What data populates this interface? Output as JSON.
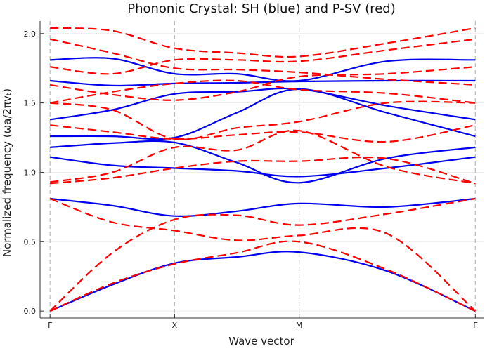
{
  "chart_data": {
    "type": "line",
    "title": "Phononic Crystal: SH (blue) and P-SV (red)",
    "xlabel": "Wave vector",
    "ylabel": "Normalized frequency (ωa/2πvₜ)",
    "xticks": [
      {
        "label": "Γ",
        "k": 0
      },
      {
        "label": "X",
        "k": 1
      },
      {
        "label": "M",
        "k": 2
      },
      {
        "label": "Γ",
        "k": 3.414
      }
    ],
    "yticks": [
      "0.0",
      "0.5",
      "1.0",
      "1.5",
      "2.0"
    ],
    "ylim": [
      -0.05,
      2.09
    ],
    "xlim": [
      -0.08,
      3.48
    ],
    "grid": true,
    "k": [
      0,
      0.5,
      1,
      1.5,
      2,
      2.7,
      3.414
    ],
    "series": [
      {
        "mode": "SH",
        "color": "#0000ee",
        "style": "solid",
        "bands": [
          [
            0,
            0.19,
            0.345,
            0.39,
            0.425,
            0.29,
            0
          ],
          [
            0.81,
            0.76,
            0.685,
            0.72,
            0.775,
            0.75,
            0.81
          ],
          [
            1.11,
            1.05,
            1.03,
            1.01,
            0.97,
            1.03,
            1.11
          ],
          [
            1.18,
            1.21,
            1.215,
            1.07,
            0.925,
            1.1,
            1.18
          ],
          [
            1.26,
            1.26,
            1.25,
            1.43,
            1.6,
            1.43,
            1.26
          ],
          [
            1.38,
            1.45,
            1.565,
            1.58,
            1.6,
            1.48,
            1.38
          ],
          [
            1.66,
            1.625,
            1.64,
            1.645,
            1.655,
            1.66,
            1.66
          ],
          [
            1.81,
            1.82,
            1.71,
            1.71,
            1.66,
            1.8,
            1.81
          ]
        ]
      },
      {
        "mode": "P-SV",
        "color": "#ff0000",
        "style": "dashed",
        "bands": [
          [
            0,
            0.2,
            0.34,
            0.42,
            0.5,
            0.3,
            0
          ],
          [
            0.81,
            0.64,
            0.58,
            0.51,
            0.545,
            0.56,
            0
          ],
          [
            0,
            0.42,
            0.66,
            0.69,
            0.62,
            0.7,
            0.81
          ],
          [
            0.92,
            0.96,
            1.03,
            1.08,
            1.08,
            1.1,
            0.92
          ],
          [
            0.93,
            1.0,
            1.18,
            1.16,
            1.3,
            1.04,
            0.92
          ],
          [
            1.34,
            1.29,
            1.24,
            1.27,
            1.29,
            1.22,
            1.34
          ],
          [
            1.5,
            1.45,
            1.24,
            1.32,
            1.365,
            1.5,
            1.5
          ],
          [
            1.5,
            1.58,
            1.64,
            1.66,
            1.595,
            1.57,
            1.5
          ],
          [
            1.63,
            1.56,
            1.52,
            1.58,
            1.69,
            1.71,
            1.76
          ],
          [
            1.96,
            1.86,
            1.75,
            1.74,
            1.72,
            1.67,
            1.63
          ],
          [
            1.76,
            1.71,
            1.81,
            1.81,
            1.8,
            1.88,
            1.96
          ],
          [
            2.04,
            2.02,
            1.894,
            1.86,
            1.835,
            1.93,
            2.04
          ]
        ]
      }
    ]
  }
}
